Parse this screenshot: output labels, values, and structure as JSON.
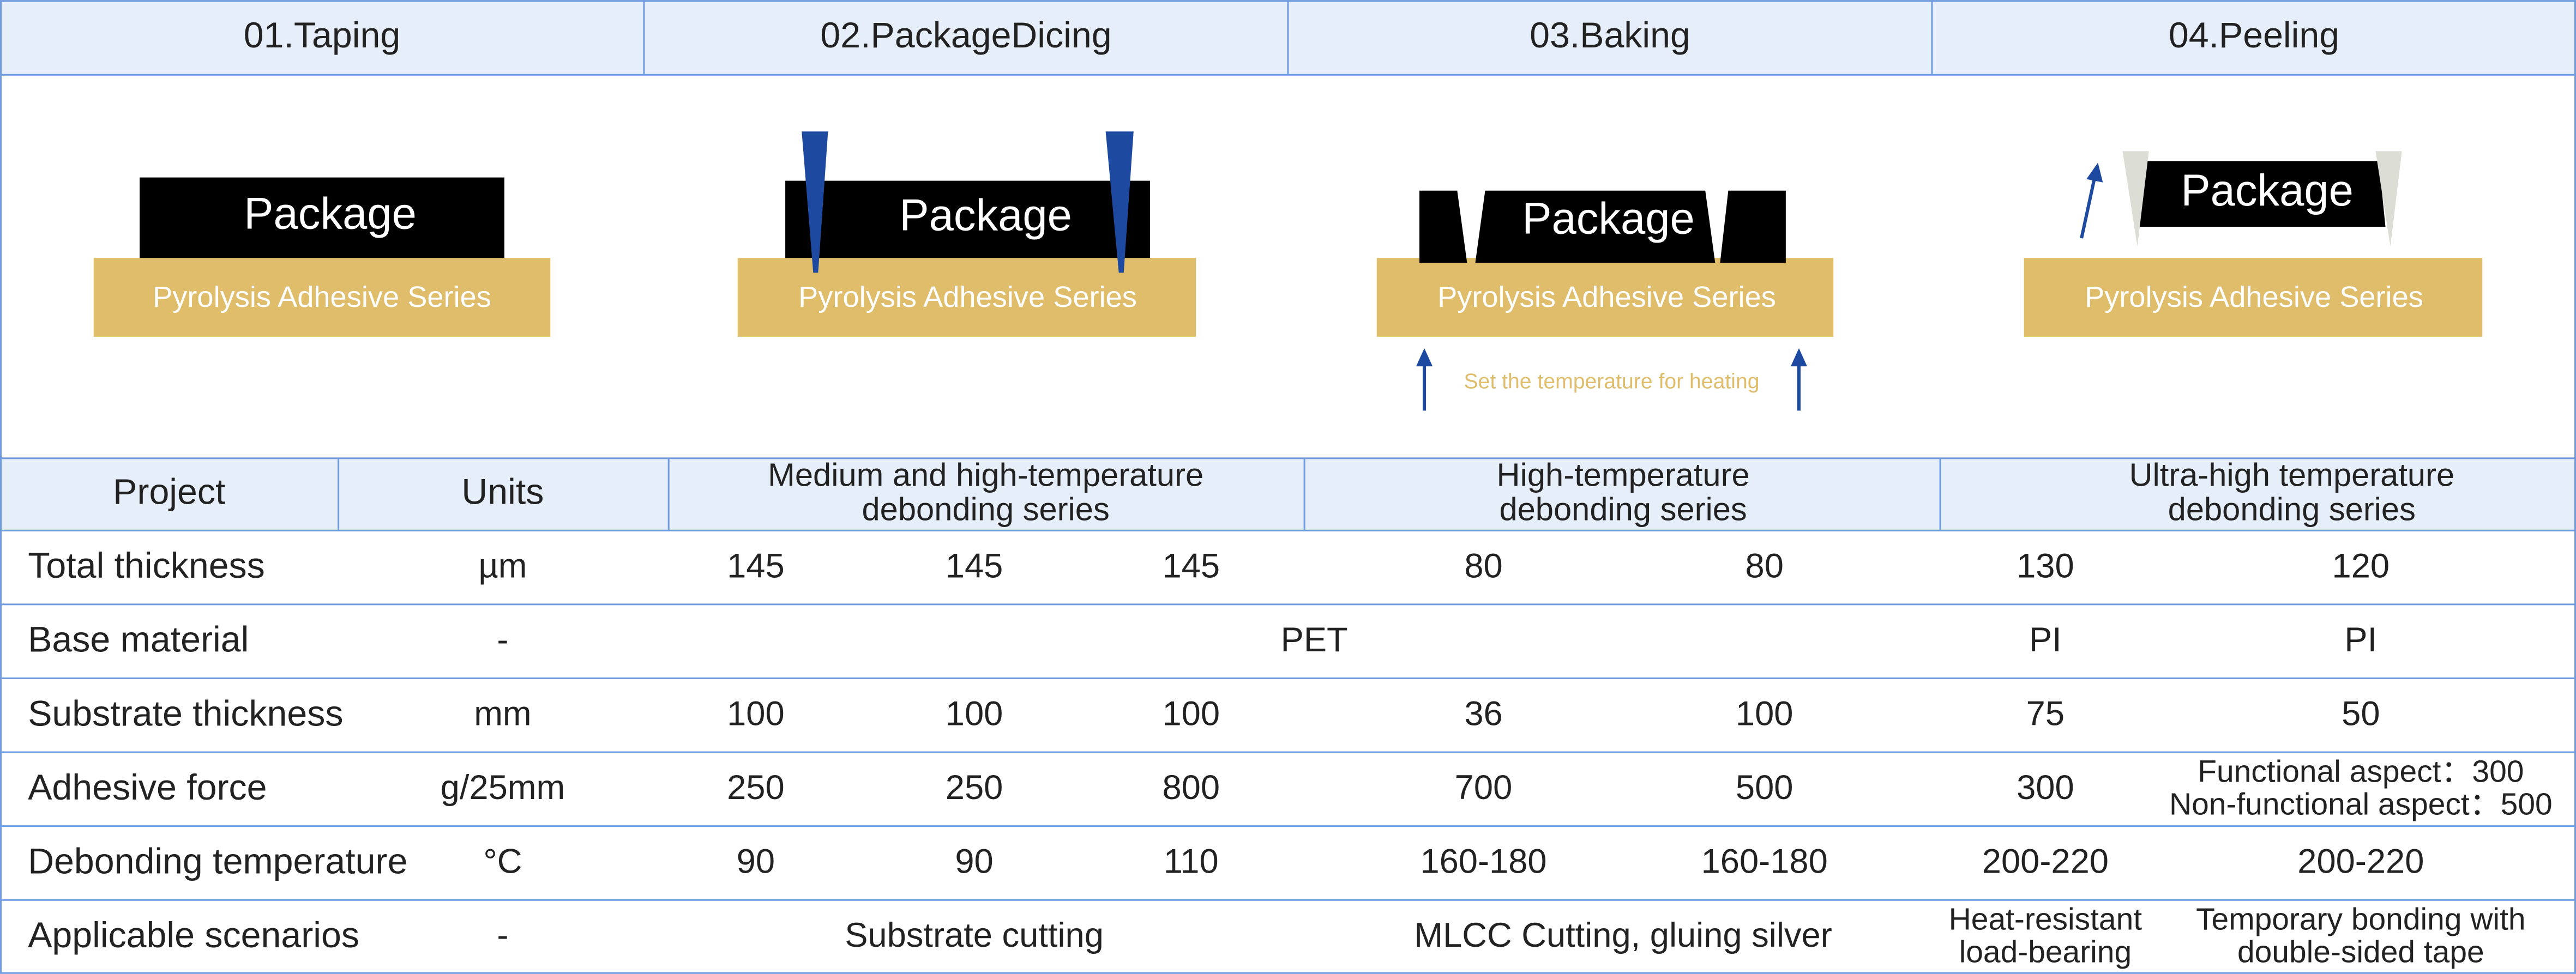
{
  "process": {
    "steps": [
      "01.Taping",
      "02.PackageDicing",
      "03.Baking",
      "04.Peeling"
    ],
    "package_label": "Package",
    "adhesive_label": "Pyrolysis Adhesive Series",
    "heating_note": "Set the temperature for heating"
  },
  "table": {
    "headers": [
      "Project",
      "Units",
      [
        "Medium and high-temperature",
        "debonding series"
      ],
      [
        "High-temperature",
        "debonding series"
      ],
      [
        "Ultra-high temperature",
        "debonding series"
      ]
    ],
    "rows": [
      {
        "label": "Total thickness",
        "unit": "µm",
        "cells": [
          145,
          145,
          145,
          80,
          80,
          130,
          120
        ]
      },
      {
        "label": "Base material",
        "unit": "-",
        "cells": [
          "PET",
          "PI",
          "PI"
        ]
      },
      {
        "label": "Substrate thickness",
        "unit": "mm",
        "cells": [
          100,
          100,
          100,
          36,
          100,
          75,
          50
        ]
      },
      {
        "label": "Adhesive force",
        "unit": "g/25mm",
        "cells": [
          250,
          250,
          800,
          700,
          500,
          300,
          [
            "Functional aspect：300",
            "Non-functional aspect：500"
          ]
        ]
      },
      {
        "label": "Debonding temperature",
        "unit": "°C",
        "cells": [
          90,
          90,
          110,
          "160-180",
          "160-180",
          "200-220",
          "200-220"
        ]
      },
      {
        "label": "Applicable scenarios",
        "unit": "-",
        "cells": [
          "Substrate cutting",
          "MLCC  Cutting, gluing silver",
          [
            "Heat-resistant",
            "load-bearing"
          ],
          [
            "Temporary bonding with",
            "double-sided tape"
          ]
        ]
      }
    ]
  }
}
